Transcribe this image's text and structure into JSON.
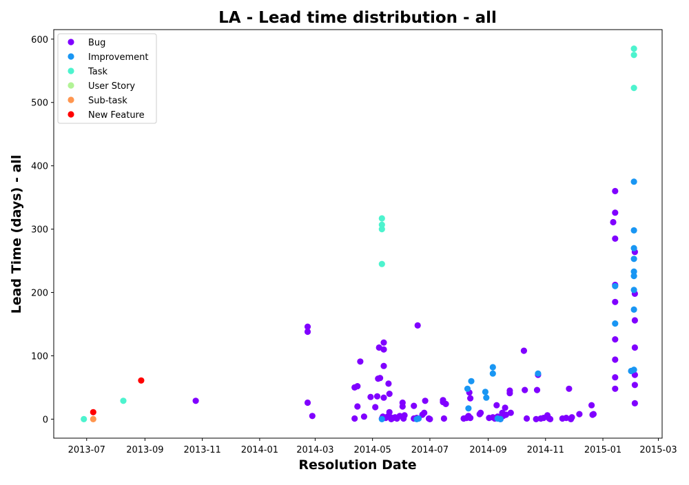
{
  "chart_data": {
    "type": "scatter",
    "title": "LA - Lead time distribution - all",
    "xlabel": "Resolution Date",
    "ylabel": "Lead Time (days) - all",
    "x_type": "date",
    "xlim": [
      "2013-05-27",
      "2015-03-05"
    ],
    "ylim": [
      -30,
      615
    ],
    "x_ticks": [
      "2013-07-01",
      "2013-09-01",
      "2013-11-01",
      "2014-01-01",
      "2014-03-01",
      "2014-05-01",
      "2014-07-01",
      "2014-09-01",
      "2014-11-01",
      "2015-01-01",
      "2015-03-01"
    ],
    "x_tick_labels": [
      "2013-07",
      "2013-09",
      "2013-11",
      "2014-01",
      "2014-03",
      "2014-05",
      "2014-07",
      "2014-09",
      "2014-11",
      "2015-01",
      "2015-03"
    ],
    "y_ticks": [
      0,
      100,
      200,
      300,
      400,
      500,
      600
    ],
    "grid": false,
    "legend_position": "top-left",
    "series": [
      {
        "name": "Bug",
        "color": "#8000ff",
        "points": [
          [
            "2013-10-25",
            29
          ],
          [
            "2014-02-21",
            146
          ],
          [
            "2014-02-21",
            138
          ],
          [
            "2014-02-21",
            26
          ],
          [
            "2014-02-26",
            5
          ],
          [
            "2014-04-12",
            50
          ],
          [
            "2014-04-12",
            1
          ],
          [
            "2014-04-15",
            52
          ],
          [
            "2014-04-15",
            20
          ],
          [
            "2014-04-18",
            91
          ],
          [
            "2014-04-22",
            4
          ],
          [
            "2014-04-29",
            35
          ],
          [
            "2014-05-04",
            19
          ],
          [
            "2014-05-06",
            36
          ],
          [
            "2014-05-07",
            64
          ],
          [
            "2014-05-08",
            113
          ],
          [
            "2014-05-09",
            65
          ],
          [
            "2014-05-11",
            1
          ],
          [
            "2014-05-12",
            4
          ],
          [
            "2014-05-13",
            121
          ],
          [
            "2014-05-13",
            110
          ],
          [
            "2014-05-13",
            84
          ],
          [
            "2014-05-13",
            34
          ],
          [
            "2014-05-15",
            2
          ],
          [
            "2014-05-17",
            4
          ],
          [
            "2014-05-18",
            56
          ],
          [
            "2014-05-19",
            40
          ],
          [
            "2014-05-19",
            11
          ],
          [
            "2014-05-20",
            3
          ],
          [
            "2014-05-21",
            0
          ],
          [
            "2014-05-23",
            2
          ],
          [
            "2014-05-25",
            3
          ],
          [
            "2014-05-27",
            1
          ],
          [
            "2014-05-30",
            5
          ],
          [
            "2014-06-02",
            26
          ],
          [
            "2014-06-02",
            20
          ],
          [
            "2014-06-03",
            1
          ],
          [
            "2014-06-04",
            6
          ],
          [
            "2014-06-14",
            21
          ],
          [
            "2014-06-14",
            1
          ],
          [
            "2014-06-17",
            2
          ],
          [
            "2014-06-18",
            148
          ],
          [
            "2014-06-23",
            7
          ],
          [
            "2014-06-25",
            10
          ],
          [
            "2014-06-26",
            29
          ],
          [
            "2014-06-30",
            1
          ],
          [
            "2014-07-01",
            0
          ],
          [
            "2014-07-15",
            30
          ],
          [
            "2014-07-15",
            27
          ],
          [
            "2014-07-16",
            1
          ],
          [
            "2014-07-18",
            24
          ],
          [
            "2014-08-06",
            1
          ],
          [
            "2014-08-09",
            2
          ],
          [
            "2014-08-11",
            5
          ],
          [
            "2014-08-12",
            42
          ],
          [
            "2014-08-13",
            33
          ],
          [
            "2014-08-13",
            2
          ],
          [
            "2014-08-23",
            8
          ],
          [
            "2014-08-24",
            10
          ],
          [
            "2014-09-02",
            2
          ],
          [
            "2014-09-06",
            3
          ],
          [
            "2014-09-08",
            1
          ],
          [
            "2014-09-10",
            22
          ],
          [
            "2014-09-11",
            4
          ],
          [
            "2014-09-13",
            1
          ],
          [
            "2014-09-14",
            0
          ],
          [
            "2014-09-16",
            10
          ],
          [
            "2014-09-17",
            5
          ],
          [
            "2014-09-19",
            18
          ],
          [
            "2014-09-20",
            7
          ],
          [
            "2014-09-24",
            45
          ],
          [
            "2014-09-24",
            41
          ],
          [
            "2014-09-25",
            10
          ],
          [
            "2014-10-09",
            108
          ],
          [
            "2014-10-10",
            46
          ],
          [
            "2014-10-12",
            1
          ],
          [
            "2014-10-22",
            0
          ],
          [
            "2014-10-23",
            46
          ],
          [
            "2014-10-24",
            70
          ],
          [
            "2014-10-27",
            1
          ],
          [
            "2014-10-30",
            2
          ],
          [
            "2014-11-03",
            6
          ],
          [
            "2014-11-05",
            1
          ],
          [
            "2014-11-06",
            0
          ],
          [
            "2014-11-19",
            1
          ],
          [
            "2014-11-23",
            2
          ],
          [
            "2014-11-26",
            48
          ],
          [
            "2014-11-28",
            0
          ],
          [
            "2014-11-29",
            3
          ],
          [
            "2014-12-07",
            8
          ],
          [
            "2014-12-20",
            22
          ],
          [
            "2014-12-21",
            7
          ],
          [
            "2014-12-22",
            8
          ],
          [
            "2015-01-12",
            311
          ],
          [
            "2015-01-14",
            360
          ],
          [
            "2015-01-14",
            326
          ],
          [
            "2015-01-14",
            285
          ],
          [
            "2015-01-14",
            212
          ],
          [
            "2015-01-14",
            185
          ],
          [
            "2015-01-14",
            126
          ],
          [
            "2015-01-14",
            94
          ],
          [
            "2015-01-14",
            66
          ],
          [
            "2015-01-14",
            48
          ],
          [
            "2015-02-04",
            264
          ],
          [
            "2015-02-04",
            198
          ],
          [
            "2015-02-04",
            156
          ],
          [
            "2015-02-04",
            113
          ],
          [
            "2015-02-04",
            70
          ],
          [
            "2015-02-04",
            54
          ],
          [
            "2015-02-04",
            25
          ]
        ]
      },
      {
        "name": "Improvement",
        "color": "#1996f3",
        "points": [
          [
            "2014-05-11",
            0
          ],
          [
            "2014-06-17",
            0
          ],
          [
            "2014-06-19",
            1
          ],
          [
            "2014-08-10",
            48
          ],
          [
            "2014-08-11",
            17
          ],
          [
            "2014-08-14",
            60
          ],
          [
            "2014-08-29",
            43
          ],
          [
            "2014-08-30",
            34
          ],
          [
            "2014-09-06",
            82
          ],
          [
            "2014-09-06",
            72
          ],
          [
            "2014-09-11",
            1
          ],
          [
            "2014-09-14",
            0
          ],
          [
            "2014-10-24",
            72
          ],
          [
            "2015-01-14",
            210
          ],
          [
            "2015-01-14",
            151
          ],
          [
            "2015-01-31",
            76
          ],
          [
            "2015-02-03",
            375
          ],
          [
            "2015-02-03",
            298
          ],
          [
            "2015-02-03",
            270
          ],
          [
            "2015-02-03",
            253
          ],
          [
            "2015-02-03",
            233
          ],
          [
            "2015-02-03",
            226
          ],
          [
            "2015-02-03",
            204
          ],
          [
            "2015-02-03",
            173
          ],
          [
            "2015-02-03",
            78
          ]
        ]
      },
      {
        "name": "Task",
        "color": "#4df3ce",
        "points": [
          [
            "2013-06-28",
            0
          ],
          [
            "2013-08-09",
            29
          ],
          [
            "2014-05-11",
            317
          ],
          [
            "2014-05-11",
            307
          ],
          [
            "2014-05-11",
            300
          ],
          [
            "2014-05-11",
            245
          ],
          [
            "2015-02-03",
            585
          ],
          [
            "2015-02-03",
            575
          ],
          [
            "2015-02-03",
            523
          ]
        ]
      },
      {
        "name": "User Story",
        "color": "#b2f396",
        "points": []
      },
      {
        "name": "Sub-task",
        "color": "#ff964f",
        "points": [
          [
            "2013-07-08",
            0
          ]
        ]
      },
      {
        "name": "New Feature",
        "color": "#ff0000",
        "points": [
          [
            "2013-07-08",
            11
          ],
          [
            "2013-08-28",
            61
          ]
        ]
      }
    ]
  }
}
